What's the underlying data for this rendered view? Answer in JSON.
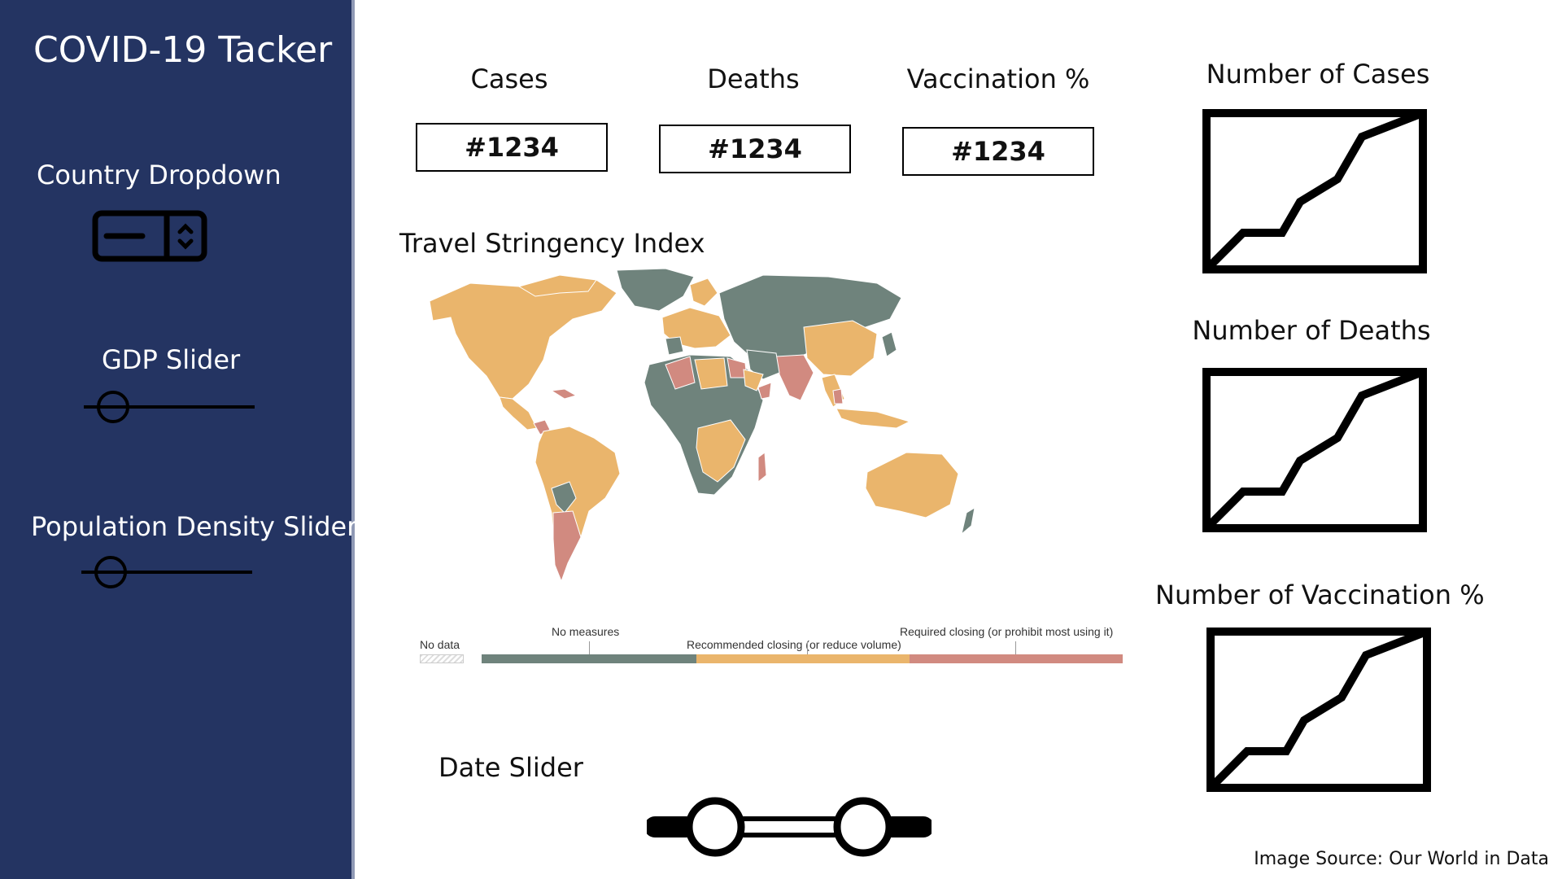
{
  "sidebar": {
    "title": "COVID-19 Tacker",
    "country_dropdown_label": "Country Dropdown",
    "gdp_slider_label": "GDP Slider",
    "gdp_slider_value": 0.17,
    "pop_density_slider_label": "Population Density Slider",
    "pop_density_slider_value": 0.17,
    "icons": {
      "dropdown": "dropdown-icon"
    }
  },
  "stats": [
    {
      "label": "Cases",
      "value": "#1234"
    },
    {
      "label": "Deaths",
      "value": "#1234"
    },
    {
      "label": "Vaccination %",
      "value": "#1234"
    }
  ],
  "map": {
    "title": "Travel Stringency Index",
    "legend": {
      "no_data": "No data",
      "no_measures": "No measures",
      "recommended": "Recommended closing (or reduce volume)",
      "required": "Required closing (or prohibit most using it)",
      "colors": {
        "none": "#6f837c",
        "recommended": "#eab56c",
        "required": "#d18a80"
      }
    }
  },
  "charts": [
    {
      "title": "Number of Cases",
      "icon": "line-chart-icon"
    },
    {
      "title": "Number of Deaths",
      "icon": "line-chart-icon"
    },
    {
      "title": "Number of Vaccination %",
      "icon": "line-chart-icon"
    }
  ],
  "date_slider": {
    "label": "Date Slider",
    "range": [
      0.24,
      0.76
    ]
  },
  "footer": {
    "source": "Image Source: Our World in Data"
  },
  "theme": {
    "sidebar_bg": "#243462",
    "text_on_dark": "#ffffff"
  }
}
